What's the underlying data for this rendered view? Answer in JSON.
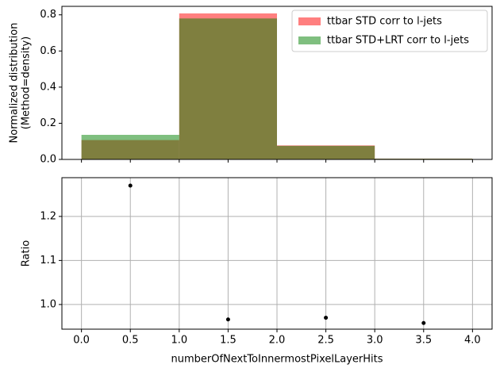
{
  "chart_data": [
    {
      "type": "histogram",
      "ylabel": [
        "Normalized distribution",
        "(Method=density)"
      ],
      "bins": [
        0,
        1,
        2,
        3,
        4
      ],
      "series": [
        {
          "name": "ttbar STD corr to l-jets",
          "color": "#ff0000",
          "values": [
            0.107,
            0.808,
            0.0775,
            0.0045
          ]
        },
        {
          "name": "ttbar STD+LRT corr to l-jets",
          "color": "#008000",
          "values": [
            0.136,
            0.78,
            0.0752,
            0.0043
          ]
        }
      ],
      "opacity": 0.5,
      "xlim": [
        -0.2,
        4.2
      ],
      "ylim": [
        0,
        0.847
      ],
      "yticks": [
        {
          "value": 0,
          "label": "0.0"
        },
        0.2,
        0.4,
        0.6,
        0.8
      ],
      "legend": "upper right"
    },
    {
      "type": "scatter",
      "xlabel": "numberOfNextToInnermostPixelLayerHits",
      "ylabel": "Ratio",
      "x": [
        0.5,
        1.5,
        2.5,
        3.5
      ],
      "values": [
        1.27,
        0.966,
        0.97,
        0.958
      ],
      "color": "#000000",
      "xlim": [
        -0.2,
        4.2
      ],
      "ylim": [
        0.944,
        1.288
      ],
      "xticks": [
        {
          "value": 0,
          "label": "0.0"
        },
        0.5,
        {
          "value": 1,
          "label": "1.0"
        },
        1.5,
        {
          "value": 2,
          "label": "2.0"
        },
        2.5,
        {
          "value": 3,
          "label": "3.0"
        },
        3.5,
        {
          "value": 4,
          "label": "4.0"
        }
      ],
      "yticks": [
        {
          "value": 1,
          "label": "1.0"
        },
        1.1,
        1.2
      ],
      "grid": true
    }
  ]
}
